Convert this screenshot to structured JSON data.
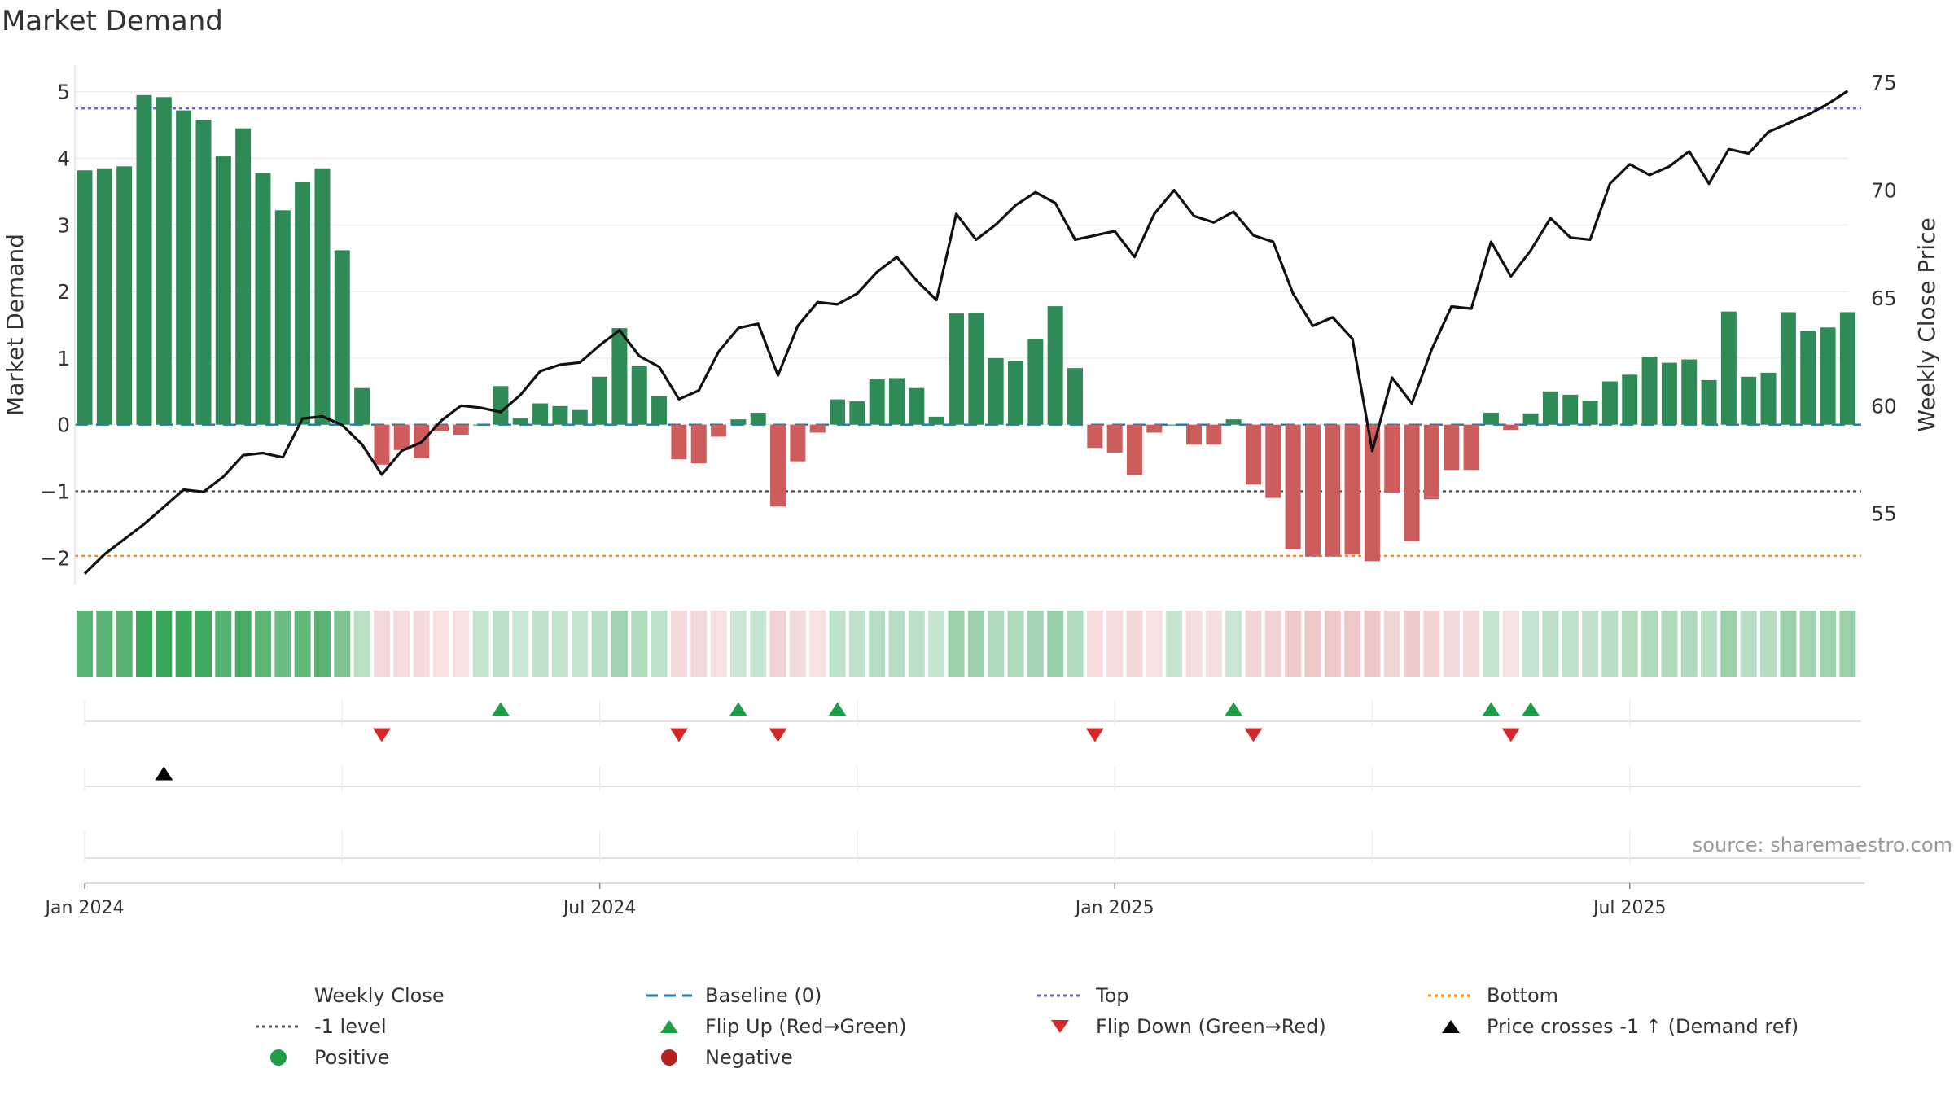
{
  "title": "Market Demand",
  "source_label": "source: sharemaestro.com",
  "chart_data": {
    "type": "bar+line",
    "title": "Market Demand",
    "ylabel_left": "Market Demand",
    "ylabel_right": "Weekly Close Price",
    "ylim_left": [
      -2.4,
      5.4
    ],
    "ylim_right": [
      51.7,
      75.8
    ],
    "yticks_left": [
      5,
      4,
      3,
      2,
      1,
      0,
      -1,
      -2
    ],
    "ytick_labels_left": [
      "5",
      "4",
      "3",
      "2",
      "1",
      "0",
      "−1",
      "−2"
    ],
    "yticks_right": [
      75,
      70,
      65,
      60,
      55
    ],
    "ytick_labels_right": [
      "75",
      "70",
      "65",
      "60",
      "55"
    ],
    "xticks": [
      0,
      26,
      52,
      78
    ],
    "xtick_labels": [
      "Jan 2024",
      "Jul 2024",
      "Jan 2025",
      "Jul 2025"
    ],
    "reference_lines": {
      "top": 4.75,
      "baseline": 0,
      "minus_one": -1,
      "bottom": -1.97
    },
    "demand": [
      3.82,
      3.85,
      3.88,
      4.95,
      4.92,
      4.72,
      4.58,
      4.03,
      4.45,
      3.78,
      3.22,
      3.64,
      3.85,
      2.62,
      0.55,
      -0.6,
      -0.38,
      -0.5,
      -0.1,
      -0.15,
      0.0,
      0.58,
      0.1,
      0.32,
      0.28,
      0.22,
      0.72,
      1.45,
      0.88,
      0.43,
      -0.52,
      -0.58,
      -0.18,
      0.08,
      0.18,
      -1.23,
      -0.55,
      -0.12,
      0.38,
      0.35,
      0.68,
      0.7,
      0.55,
      0.12,
      1.67,
      1.68,
      1.0,
      0.95,
      1.29,
      1.78,
      0.85,
      -0.35,
      -0.42,
      -0.75,
      -0.12,
      0.0,
      -0.3,
      -0.3,
      0.08,
      -0.9,
      -1.1,
      -1.87,
      -1.98,
      -1.98,
      -1.95,
      -2.05,
      -1.02,
      -1.75,
      -1.12,
      -0.68,
      -0.68,
      0.18,
      -0.08,
      0.17,
      0.5,
      0.45,
      0.36,
      0.65,
      0.75,
      1.02,
      0.93,
      0.98,
      0.67,
      1.7,
      0.72,
      0.78,
      1.69,
      1.41,
      1.46,
      1.69
    ],
    "weekly_close": [
      52.2,
      53.1,
      53.8,
      54.5,
      55.3,
      56.1,
      56.0,
      56.7,
      57.7,
      57.8,
      57.6,
      59.4,
      59.5,
      59.1,
      58.2,
      56.8,
      57.9,
      58.3,
      59.3,
      60.0,
      59.9,
      59.7,
      60.5,
      61.6,
      61.9,
      62.0,
      62.8,
      63.5,
      62.3,
      61.8,
      60.3,
      60.7,
      62.5,
      63.6,
      63.8,
      61.4,
      63.7,
      64.8,
      64.7,
      65.2,
      66.2,
      66.9,
      65.8,
      64.9,
      68.9,
      67.7,
      68.4,
      69.3,
      69.9,
      69.4,
      67.7,
      67.9,
      68.1,
      66.9,
      68.9,
      70.0,
      68.8,
      68.5,
      69.0,
      67.9,
      67.6,
      65.2,
      63.7,
      64.1,
      63.1,
      57.9,
      61.3,
      60.1,
      62.6,
      64.6,
      64.5,
      67.6,
      66.0,
      67.2,
      68.7,
      67.8,
      67.7,
      70.3,
      71.2,
      70.7,
      71.1,
      71.8,
      70.3,
      71.9,
      71.7,
      72.7,
      73.1,
      73.5,
      74.0,
      74.6
    ],
    "flip_up_weeks": [
      21,
      33,
      38,
      58,
      71,
      73
    ],
    "flip_down_weeks": [
      15,
      30,
      35,
      51,
      59,
      72
    ],
    "price_cross_weeks": [
      4
    ],
    "colors": {
      "positive_bar": "#2e8b57",
      "negative_bar": "#cd5c5c",
      "close_line": "#111111",
      "baseline": "#1f77b4",
      "top": "#6a5acd",
      "minus_one": "#555555",
      "bottom": "#ff8c00",
      "flip_up": "#1f9e4a",
      "flip_down": "#d62728",
      "price_cross": "#000000",
      "positive_dot": "#1f9e4a",
      "negative_dot": "#b22222"
    },
    "legend": [
      {
        "key": "close",
        "label": "Weekly Close",
        "symbol": "line"
      },
      {
        "key": "baseline",
        "label": "Baseline (0)",
        "symbol": "dash"
      },
      {
        "key": "top",
        "label": "Top",
        "symbol": "dot"
      },
      {
        "key": "bottom",
        "label": "Bottom",
        "symbol": "dot"
      },
      {
        "key": "minus_one",
        "label": "-1 level",
        "symbol": "dot"
      },
      {
        "key": "flip_up",
        "label": "Flip Up (Red→Green)",
        "symbol": "tri-up"
      },
      {
        "key": "flip_down",
        "label": "Flip Down (Green→Red)",
        "symbol": "tri-down"
      },
      {
        "key": "price_cross",
        "label": "Price crosses -1 ↑ (Demand ref)",
        "symbol": "tri-up"
      },
      {
        "key": "positive_dot",
        "label": "Positive",
        "symbol": "circle"
      },
      {
        "key": "negative_dot",
        "label": "Negative",
        "symbol": "circle"
      }
    ]
  }
}
